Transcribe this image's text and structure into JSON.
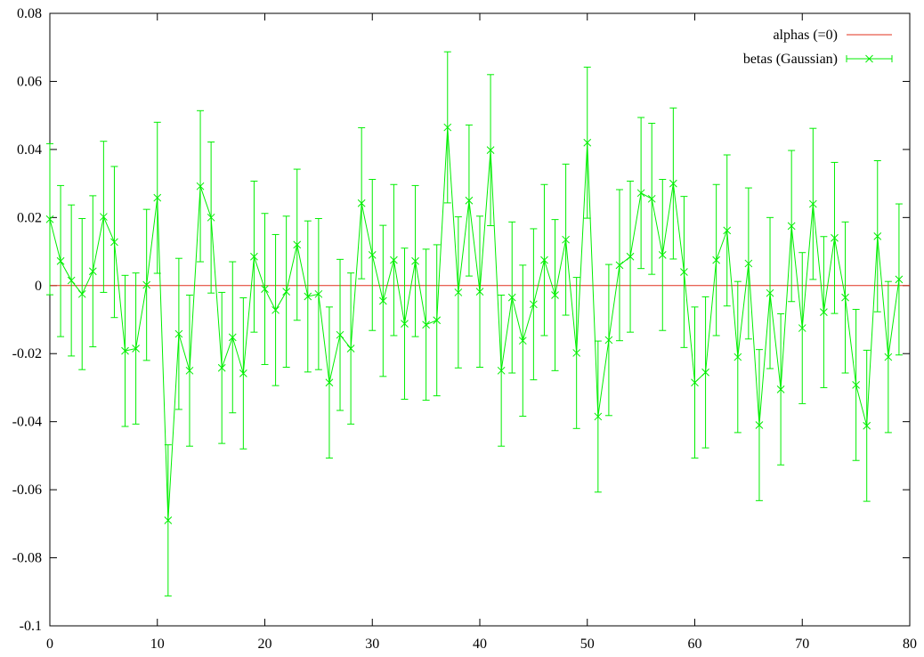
{
  "chart_data": {
    "type": "line",
    "xlim": [
      0,
      80
    ],
    "ylim": [
      -0.1,
      0.08
    ],
    "x_ticks": [
      0,
      10,
      20,
      30,
      40,
      50,
      60,
      70,
      80
    ],
    "x_tick_labels": [
      "0",
      "10",
      "20",
      "30",
      "40",
      "50",
      "60",
      "70",
      "80"
    ],
    "y_ticks": [
      -0.1,
      -0.08,
      -0.06,
      -0.04,
      -0.02,
      0,
      0.02,
      0.04,
      0.06,
      0.08
    ],
    "y_tick_labels": [
      "-0.1",
      "-0.08",
      "-0.06",
      "-0.04",
      "-0.02",
      "0",
      "0.02",
      "0.04",
      "0.06",
      "0.08"
    ],
    "grid": false,
    "legend_position": "top-right",
    "error_bar": 0.0222,
    "series": [
      {
        "name": "alphas (=0)",
        "kind": "constant-line",
        "value": 0,
        "color": "#e0301e"
      },
      {
        "name": "betas (Gaussian)",
        "kind": "points-with-error-bars",
        "marker": "x",
        "color": "#00ee00",
        "x": [
          0,
          1,
          2,
          3,
          4,
          5,
          6,
          7,
          8,
          9,
          10,
          11,
          12,
          13,
          14,
          15,
          16,
          17,
          18,
          19,
          20,
          21,
          22,
          23,
          24,
          25,
          26,
          27,
          28,
          29,
          30,
          31,
          32,
          33,
          34,
          35,
          36,
          37,
          38,
          39,
          40,
          41,
          42,
          43,
          44,
          45,
          46,
          47,
          48,
          49,
          50,
          51,
          52,
          53,
          54,
          55,
          56,
          57,
          58,
          59,
          60,
          61,
          62,
          63,
          64,
          65,
          66,
          67,
          68,
          69,
          70,
          71,
          72,
          73,
          74,
          75,
          76,
          77,
          78,
          79
        ],
        "values": [
          0.0195,
          0.0072,
          0.0015,
          -0.0025,
          0.0042,
          0.0202,
          0.0128,
          -0.0192,
          -0.0185,
          0.0002,
          0.0258,
          -0.069,
          -0.0142,
          -0.025,
          0.0292,
          0.02,
          -0.0242,
          -0.0152,
          -0.0258,
          0.0085,
          -0.001,
          -0.0072,
          -0.0018,
          0.012,
          -0.0032,
          -0.0025,
          -0.0285,
          -0.0145,
          -0.0185,
          0.0242,
          0.009,
          -0.0045,
          0.0075,
          -0.0112,
          0.0072,
          -0.0115,
          -0.0102,
          0.0465,
          -0.002,
          0.025,
          -0.0018,
          0.0398,
          -0.025,
          -0.0035,
          -0.0162,
          -0.0055,
          0.0075,
          -0.0028,
          0.0135,
          -0.0198,
          0.042,
          -0.0385,
          -0.016,
          0.006,
          0.0085,
          0.0272,
          0.0255,
          0.009,
          0.03,
          0.004,
          -0.0285,
          -0.0255,
          0.0075,
          0.0162,
          -0.021,
          0.0065,
          -0.041,
          -0.0022,
          -0.0305,
          0.0175,
          -0.0125,
          0.024,
          -0.0078,
          0.014,
          -0.0035,
          -0.0292,
          -0.0412,
          0.0145,
          -0.021,
          0.0018
        ]
      }
    ]
  }
}
